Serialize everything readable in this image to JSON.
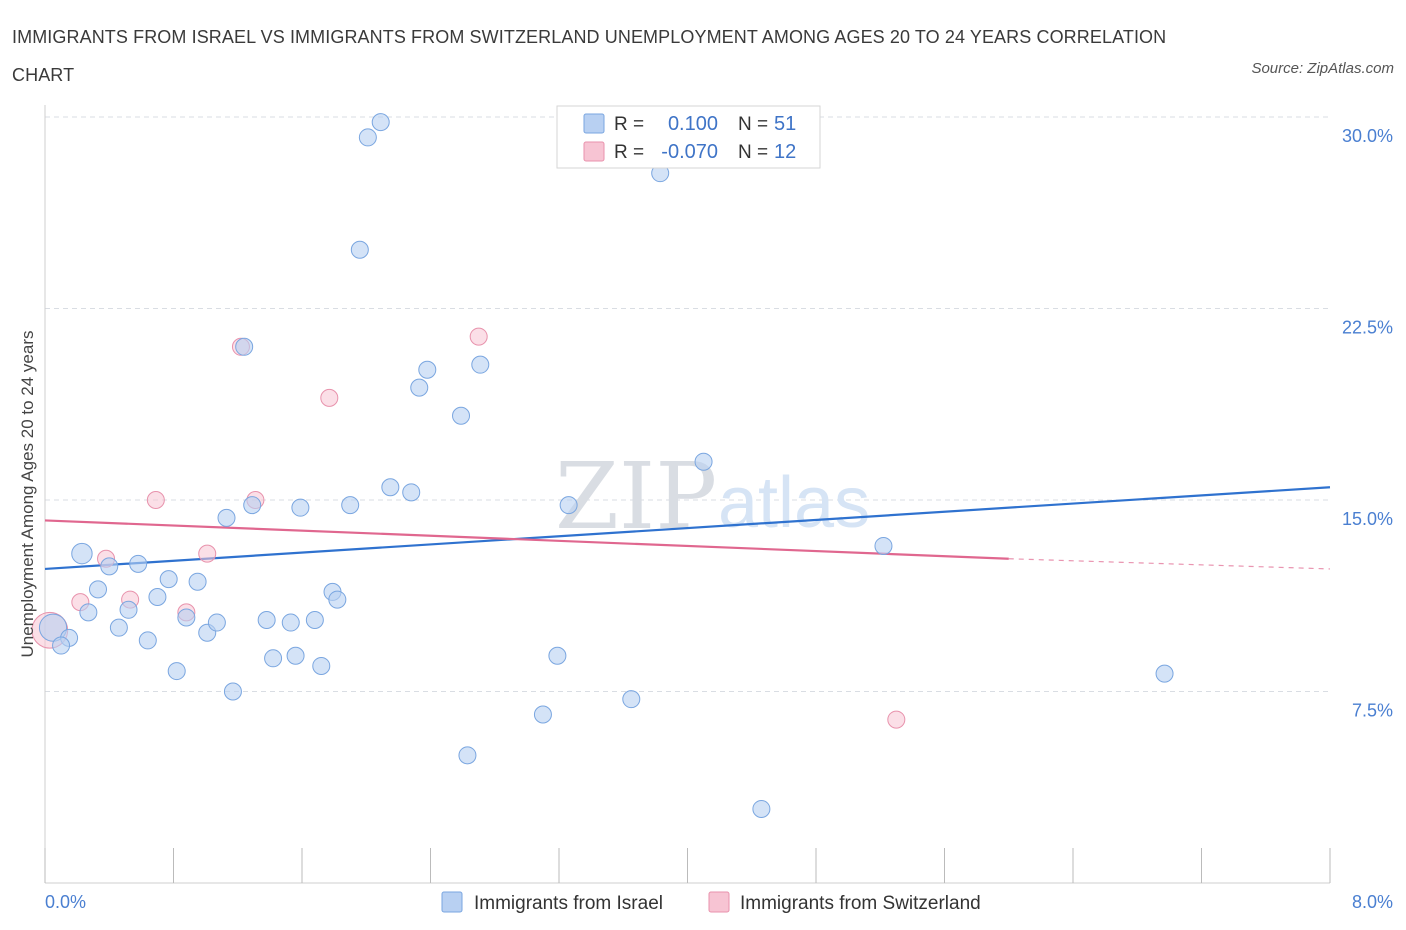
{
  "title": "IMMIGRANTS FROM ISRAEL VS IMMIGRANTS FROM SWITZERLAND UNEMPLOYMENT AMONG AGES 20 TO 24 YEARS CORRELATION CHART",
  "source": "Source: ZipAtlas.com",
  "watermark": {
    "zip": "ZIP",
    "atlas": "atlas"
  },
  "colors": {
    "israel_fill": "#b8d0f2",
    "israel_stroke": "#7aa6e0",
    "israel_line": "#2f72cf",
    "swiss_fill": "#f7c4d3",
    "swiss_stroke": "#e892ac",
    "swiss_line": "#e0678f",
    "tick": "#4a7fd1",
    "grid": "#d9dde3"
  },
  "legend": {
    "rows": [
      {
        "r_label": "R =",
        "r_value": "0.100",
        "n_label": "N =",
        "n_value": "51"
      },
      {
        "r_label": "R =",
        "r_value": "-0.070",
        "n_label": "N =",
        "n_value": "12"
      }
    ]
  },
  "chart_data": {
    "type": "scatter",
    "title": "IMMIGRANTS FROM ISRAEL VS IMMIGRANTS FROM SWITZERLAND UNEMPLOYMENT AMONG AGES 20 TO 24 YEARS CORRELATION CHART",
    "xlabel": "",
    "ylabel": "Unemployment Among Ages 20 to 24 years",
    "xlim": [
      0,
      8
    ],
    "ylim": [
      0,
      30
    ],
    "x_tick_labels": [
      "0.0%",
      "8.0%"
    ],
    "y_ticks": [
      7.5,
      15.0,
      22.5,
      30.0
    ],
    "y_tick_labels": [
      "7.5%",
      "15.0%",
      "22.5%",
      "30.0%"
    ],
    "legend_position": "top-center",
    "series": [
      {
        "name": "Immigrants from Israel",
        "r": 0.1,
        "n": 51,
        "trend": {
          "x": [
            0,
            8
          ],
          "y": [
            12.3,
            15.5
          ]
        },
        "points": [
          {
            "x": 0.05,
            "y": 10.0,
            "s": 1.6
          },
          {
            "x": 0.15,
            "y": 9.6,
            "s": 1
          },
          {
            "x": 0.23,
            "y": 12.9,
            "s": 1.2
          },
          {
            "x": 0.27,
            "y": 10.6,
            "s": 1
          },
          {
            "x": 0.33,
            "y": 11.5,
            "s": 1
          },
          {
            "x": 0.4,
            "y": 12.4,
            "s": 1
          },
          {
            "x": 0.46,
            "y": 10.0,
            "s": 1
          },
          {
            "x": 0.52,
            "y": 10.7,
            "s": 1
          },
          {
            "x": 0.58,
            "y": 12.5,
            "s": 1
          },
          {
            "x": 0.64,
            "y": 9.5,
            "s": 1
          },
          {
            "x": 0.7,
            "y": 11.2,
            "s": 1
          },
          {
            "x": 0.77,
            "y": 11.9,
            "s": 1
          },
          {
            "x": 0.82,
            "y": 8.3,
            "s": 1
          },
          {
            "x": 0.88,
            "y": 10.4,
            "s": 1
          },
          {
            "x": 0.95,
            "y": 11.8,
            "s": 1
          },
          {
            "x": 1.01,
            "y": 9.8,
            "s": 1
          },
          {
            "x": 1.07,
            "y": 10.2,
            "s": 1
          },
          {
            "x": 1.13,
            "y": 14.3,
            "s": 1
          },
          {
            "x": 1.17,
            "y": 7.5,
            "s": 1
          },
          {
            "x": 1.24,
            "y": 21.0,
            "s": 1
          },
          {
            "x": 1.29,
            "y": 14.8,
            "s": 1
          },
          {
            "x": 1.38,
            "y": 10.3,
            "s": 1
          },
          {
            "x": 1.42,
            "y": 8.8,
            "s": 1
          },
          {
            "x": 1.53,
            "y": 10.2,
            "s": 1
          },
          {
            "x": 1.56,
            "y": 8.9,
            "s": 1
          },
          {
            "x": 1.59,
            "y": 14.7,
            "s": 1
          },
          {
            "x": 1.68,
            "y": 10.3,
            "s": 1
          },
          {
            "x": 1.72,
            "y": 8.5,
            "s": 1
          },
          {
            "x": 1.79,
            "y": 11.4,
            "s": 1
          },
          {
            "x": 1.82,
            "y": 11.1,
            "s": 1
          },
          {
            "x": 1.9,
            "y": 14.8,
            "s": 1
          },
          {
            "x": 1.96,
            "y": 24.8,
            "s": 1
          },
          {
            "x": 2.01,
            "y": 29.2,
            "s": 1
          },
          {
            "x": 2.09,
            "y": 29.8,
            "s": 1
          },
          {
            "x": 2.15,
            "y": 15.5,
            "s": 1
          },
          {
            "x": 2.33,
            "y": 19.4,
            "s": 1
          },
          {
            "x": 2.38,
            "y": 20.1,
            "s": 1
          },
          {
            "x": 2.28,
            "y": 15.3,
            "s": 1
          },
          {
            "x": 2.59,
            "y": 18.3,
            "s": 1
          },
          {
            "x": 2.71,
            "y": 20.3,
            "s": 1
          },
          {
            "x": 2.63,
            "y": 5.0,
            "s": 1
          },
          {
            "x": 3.1,
            "y": 6.6,
            "s": 1
          },
          {
            "x": 3.19,
            "y": 8.9,
            "s": 1
          },
          {
            "x": 3.26,
            "y": 14.8,
            "s": 1
          },
          {
            "x": 3.65,
            "y": 7.2,
            "s": 1
          },
          {
            "x": 3.83,
            "y": 27.8,
            "s": 1
          },
          {
            "x": 4.1,
            "y": 16.5,
            "s": 1
          },
          {
            "x": 4.46,
            "y": 2.9,
            "s": 1
          },
          {
            "x": 5.22,
            "y": 13.2,
            "s": 1
          },
          {
            "x": 6.97,
            "y": 8.2,
            "s": 1
          },
          {
            "x": 0.1,
            "y": 9.3,
            "s": 1
          }
        ]
      },
      {
        "name": "Immigrants from Switzerland",
        "r": -0.07,
        "n": 12,
        "trend": {
          "x": [
            0,
            6.0
          ],
          "y": [
            14.2,
            12.7
          ]
        },
        "trend_dashed": {
          "x": [
            6.0,
            8
          ],
          "y": [
            12.7,
            12.3
          ]
        },
        "points": [
          {
            "x": 0.03,
            "y": 9.9,
            "s": 2.1
          },
          {
            "x": 0.22,
            "y": 11.0,
            "s": 1
          },
          {
            "x": 0.38,
            "y": 12.7,
            "s": 1
          },
          {
            "x": 0.53,
            "y": 11.1,
            "s": 1
          },
          {
            "x": 0.69,
            "y": 15.0,
            "s": 1
          },
          {
            "x": 0.88,
            "y": 10.6,
            "s": 1
          },
          {
            "x": 1.01,
            "y": 12.9,
            "s": 1
          },
          {
            "x": 1.22,
            "y": 21.0,
            "s": 1
          },
          {
            "x": 1.31,
            "y": 15.0,
            "s": 1
          },
          {
            "x": 1.77,
            "y": 19.0,
            "s": 1
          },
          {
            "x": 2.7,
            "y": 21.4,
            "s": 1
          },
          {
            "x": 5.3,
            "y": 6.4,
            "s": 1
          }
        ]
      }
    ]
  }
}
